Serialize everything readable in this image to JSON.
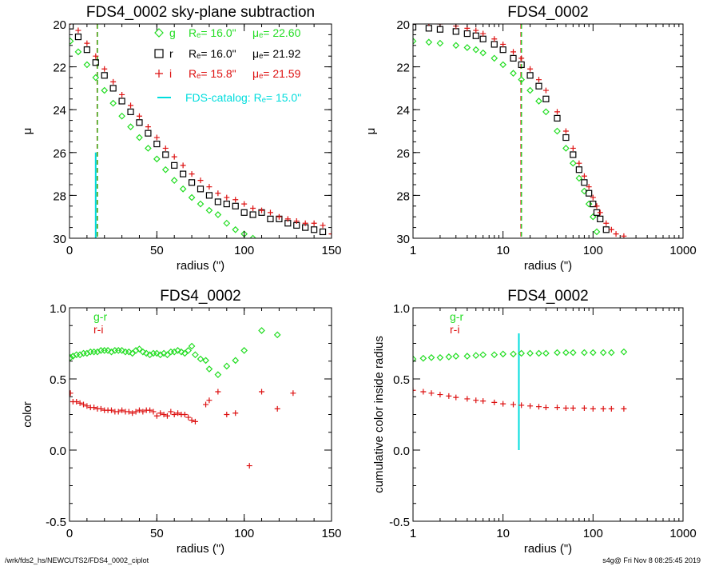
{
  "footer": {
    "path": "/wrk/fds2_hs/NEWCUTS2/FDS4_0002_ciplot",
    "stamp": "s4g@  Fri Nov  8 08:25:45 2019"
  },
  "colors": {
    "g": "#22dd22",
    "r": "#000000",
    "i": "#dd1111",
    "catalog": "#00dddd"
  },
  "chart_data": [
    {
      "id": "p1",
      "type": "scatter",
      "title": "FDS4_0002 sky-plane subtraction",
      "xlabel": "radius (\")",
      "ylabel": "μ",
      "xlim": [
        0,
        150
      ],
      "ylim": [
        30,
        20
      ],
      "xticks": [
        0,
        50,
        100,
        150
      ],
      "yticks": [
        20,
        22,
        24,
        26,
        28,
        30
      ],
      "vlines": [
        {
          "x": 16.0,
          "color": "#000000",
          "dashed": true
        },
        {
          "x": 15.8,
          "color": "#dd1111",
          "dashed": true
        },
        {
          "x": 16.0,
          "color": "#22dd22",
          "dashed": true
        },
        {
          "x": 15.0,
          "color": "#00dddd",
          "dashed": false,
          "y": [
            26.0,
            30.0
          ]
        }
      ],
      "legend": [
        {
          "symbol": "g",
          "label": "g",
          "re": "Rₑ=  16.0\"",
          "mu": "μₑ= 22.60",
          "color": "#22dd22"
        },
        {
          "symbol": "r",
          "label": "r",
          "re": "Rₑ=  16.0\"",
          "mu": "μₑ= 21.92",
          "color": "#000000"
        },
        {
          "symbol": "i",
          "label": "i",
          "re": "Rₑ=  15.8\"",
          "mu": "μₑ= 21.59",
          "color": "#dd1111"
        }
      ],
      "catalog_label": "FDS-catalog: Rₑ=  15.0\"",
      "series": [
        {
          "name": "g",
          "color": "#22dd22",
          "marker": "diamond",
          "x": [
            0.5,
            5,
            10,
            15,
            20,
            25,
            30,
            35,
            40,
            45,
            50,
            55,
            60,
            65,
            70,
            75,
            80,
            85,
            90,
            95,
            100,
            105
          ],
          "y": [
            20.8,
            21.3,
            21.9,
            22.5,
            23.1,
            23.7,
            24.3,
            24.8,
            25.3,
            25.8,
            26.3,
            26.8,
            27.3,
            27.7,
            28.1,
            28.4,
            28.7,
            28.9,
            29.3,
            29.6,
            29.8,
            30.0
          ]
        },
        {
          "name": "r",
          "color": "#000000",
          "marker": "square",
          "x": [
            0.5,
            5,
            10,
            15,
            20,
            25,
            30,
            35,
            40,
            45,
            50,
            55,
            60,
            65,
            70,
            75,
            80,
            85,
            90,
            95,
            100,
            105,
            110,
            115,
            120,
            125,
            130,
            135,
            140,
            145
          ],
          "y": [
            20.1,
            20.6,
            21.2,
            21.8,
            22.4,
            23.0,
            23.6,
            24.1,
            24.6,
            25.1,
            25.6,
            26.1,
            26.6,
            27.0,
            27.4,
            27.7,
            28.0,
            28.3,
            28.4,
            28.5,
            28.8,
            28.9,
            28.8,
            29.1,
            29.1,
            29.3,
            29.4,
            29.5,
            29.6,
            29.7
          ]
        },
        {
          "name": "i",
          "color": "#dd1111",
          "marker": "plus",
          "x": [
            0.5,
            5,
            10,
            15,
            20,
            25,
            30,
            35,
            40,
            45,
            50,
            55,
            60,
            65,
            70,
            75,
            80,
            85,
            90,
            95,
            100,
            105,
            110,
            115,
            120,
            125,
            130,
            135,
            140,
            145,
            150
          ],
          "y": [
            19.9,
            20.3,
            20.9,
            21.5,
            22.1,
            22.7,
            23.3,
            23.8,
            24.3,
            24.8,
            25.3,
            25.8,
            26.2,
            26.6,
            27.0,
            27.3,
            27.6,
            27.9,
            28.1,
            28.2,
            28.4,
            28.6,
            28.7,
            28.8,
            29.0,
            29.1,
            29.2,
            29.3,
            29.3,
            29.4,
            29.8
          ]
        }
      ]
    },
    {
      "id": "p2",
      "type": "scatter",
      "title": "FDS4_0002",
      "xlabel": "radius (\")",
      "ylabel": "μ",
      "xscale": "log",
      "xlim": [
        1,
        1000
      ],
      "ylim": [
        30,
        20
      ],
      "xticks": [
        1,
        10,
        100,
        1000
      ],
      "yticks": [
        20,
        22,
        24,
        26,
        28,
        30
      ],
      "vlines": [
        {
          "x": 16.0,
          "color": "#000000",
          "dashed": true
        },
        {
          "x": 15.8,
          "color": "#dd1111",
          "dashed": true
        },
        {
          "x": 16.0,
          "color": "#22dd22",
          "dashed": true
        }
      ],
      "series": [
        {
          "name": "g",
          "color": "#22dd22",
          "marker": "diamond",
          "x": [
            1,
            1.5,
            2,
            3,
            4,
            5,
            6,
            8,
            10,
            13,
            16,
            20,
            25,
            30,
            40,
            50,
            60,
            70,
            80,
            90,
            100,
            110
          ],
          "y": [
            20.8,
            20.85,
            20.9,
            21.0,
            21.1,
            21.2,
            21.35,
            21.6,
            21.9,
            22.3,
            22.6,
            23.1,
            23.6,
            24.1,
            25.0,
            25.8,
            26.5,
            27.2,
            27.8,
            28.4,
            29.0,
            29.7
          ]
        },
        {
          "name": "r",
          "color": "#000000",
          "marker": "square",
          "x": [
            1,
            1.5,
            2,
            3,
            4,
            5,
            6,
            8,
            10,
            13,
            16,
            20,
            25,
            30,
            40,
            50,
            60,
            70,
            80,
            90,
            100,
            110,
            120,
            140
          ],
          "y": [
            20.15,
            20.2,
            20.25,
            20.35,
            20.45,
            20.55,
            20.7,
            20.95,
            21.2,
            21.6,
            21.9,
            22.4,
            22.9,
            23.5,
            24.4,
            25.3,
            26.1,
            26.8,
            27.4,
            27.9,
            28.4,
            28.8,
            29.1,
            29.6
          ]
        },
        {
          "name": "i",
          "color": "#dd1111",
          "marker": "plus",
          "x": [
            1,
            1.5,
            2,
            3,
            4,
            5,
            6,
            8,
            10,
            13,
            16,
            20,
            25,
            30,
            40,
            50,
            60,
            70,
            80,
            90,
            100,
            110,
            120,
            140,
            160,
            180,
            220
          ],
          "y": [
            19.9,
            19.95,
            20.0,
            20.1,
            20.2,
            20.3,
            20.45,
            20.7,
            20.95,
            21.3,
            21.6,
            22.1,
            22.6,
            23.1,
            24.1,
            25.0,
            25.8,
            26.5,
            27.1,
            27.6,
            28.1,
            28.5,
            28.8,
            29.3,
            29.6,
            29.8,
            29.9
          ]
        }
      ]
    },
    {
      "id": "p3",
      "type": "scatter",
      "title": "FDS4_0002",
      "xlabel": "radius (\")",
      "ylabel": "color",
      "xlim": [
        0,
        150
      ],
      "ylim": [
        -0.5,
        1.0
      ],
      "xticks": [
        0,
        50,
        100,
        150
      ],
      "yticks": [
        -0.5,
        0.0,
        0.5,
        1.0
      ],
      "ytick_labels": [
        "-0.5",
        "0.0",
        "0.5",
        "1.0"
      ],
      "legend": [
        {
          "label": "g-r",
          "color": "#22dd22"
        },
        {
          "label": "r-i",
          "color": "#dd1111"
        }
      ],
      "series": [
        {
          "name": "g-r",
          "color": "#22dd22",
          "marker": "diamond",
          "x": [
            0.5,
            2,
            4,
            6,
            8,
            10,
            12,
            14,
            16,
            18,
            20,
            22,
            24,
            26,
            28,
            30,
            32,
            34,
            36,
            38,
            40,
            42,
            44,
            46,
            48,
            50,
            52,
            54,
            56,
            58,
            60,
            62,
            64,
            66,
            68,
            70,
            72,
            75,
            78,
            80,
            85,
            90,
            95,
            100,
            110,
            119
          ],
          "y": [
            0.65,
            0.66,
            0.67,
            0.67,
            0.68,
            0.68,
            0.69,
            0.69,
            0.69,
            0.7,
            0.7,
            0.7,
            0.69,
            0.7,
            0.7,
            0.7,
            0.69,
            0.69,
            0.68,
            0.7,
            0.71,
            0.69,
            0.68,
            0.67,
            0.68,
            0.68,
            0.67,
            0.68,
            0.67,
            0.69,
            0.69,
            0.7,
            0.69,
            0.68,
            0.7,
            0.73,
            0.67,
            0.64,
            0.63,
            0.57,
            0.53,
            0.59,
            0.63,
            0.7,
            0.84,
            0.81
          ]
        },
        {
          "name": "r-i",
          "color": "#dd1111",
          "marker": "plus",
          "x": [
            0.5,
            2,
            4,
            6,
            8,
            10,
            12,
            14,
            16,
            18,
            20,
            22,
            24,
            26,
            28,
            30,
            32,
            34,
            36,
            38,
            40,
            42,
            44,
            46,
            48,
            50,
            52,
            54,
            56,
            58,
            60,
            62,
            64,
            66,
            68,
            70,
            72,
            78,
            80,
            85,
            90,
            95,
            103,
            110,
            119,
            128
          ],
          "y": [
            0.4,
            0.34,
            0.34,
            0.33,
            0.32,
            0.31,
            0.3,
            0.3,
            0.29,
            0.29,
            0.28,
            0.28,
            0.28,
            0.27,
            0.27,
            0.28,
            0.27,
            0.27,
            0.26,
            0.27,
            0.28,
            0.27,
            0.28,
            0.28,
            0.27,
            0.24,
            0.26,
            0.25,
            0.24,
            0.27,
            0.25,
            0.26,
            0.25,
            0.25,
            0.23,
            0.21,
            0.2,
            0.32,
            0.35,
            0.41,
            0.25,
            0.26,
            -0.11,
            0.41,
            0.29,
            0.4
          ]
        }
      ]
    },
    {
      "id": "p4",
      "type": "scatter",
      "title": "FDS4_0002",
      "xlabel": "radius (\")",
      "ylabel": "cumulative color inside radius",
      "xscale": "log",
      "xlim": [
        1,
        1000
      ],
      "ylim": [
        -0.5,
        1.0
      ],
      "xticks": [
        1,
        10,
        100,
        1000
      ],
      "yticks": [
        -0.5,
        0.0,
        0.5,
        1.0
      ],
      "ytick_labels": [
        "-0.5",
        "0.0",
        "0.5",
        "1.0"
      ],
      "vlines": [
        {
          "x": 15.0,
          "color": "#00dddd",
          "dashed": false,
          "y": [
            0.0,
            0.82
          ]
        }
      ],
      "legend": [
        {
          "label": "g-r",
          "color": "#22dd22"
        },
        {
          "label": "r-i",
          "color": "#dd1111"
        }
      ],
      "series": [
        {
          "name": "g-r",
          "color": "#22dd22",
          "marker": "diamond",
          "x": [
            1,
            1.3,
            1.6,
            2,
            2.5,
            3,
            4,
            5,
            6,
            8,
            10,
            13,
            16,
            20,
            25,
            30,
            40,
            50,
            60,
            80,
            100,
            130,
            160,
            220
          ],
          "y": [
            0.64,
            0.645,
            0.65,
            0.65,
            0.655,
            0.66,
            0.66,
            0.665,
            0.67,
            0.67,
            0.675,
            0.675,
            0.68,
            0.68,
            0.68,
            0.68,
            0.685,
            0.685,
            0.685,
            0.685,
            0.685,
            0.685,
            0.685,
            0.69
          ]
        },
        {
          "name": "r-i",
          "color": "#dd1111",
          "marker": "plus",
          "x": [
            1,
            1.3,
            1.6,
            2,
            2.5,
            3,
            4,
            5,
            6,
            8,
            10,
            13,
            16,
            20,
            25,
            30,
            40,
            50,
            60,
            80,
            100,
            130,
            160,
            220
          ],
          "y": [
            0.42,
            0.41,
            0.4,
            0.39,
            0.38,
            0.37,
            0.36,
            0.35,
            0.345,
            0.335,
            0.325,
            0.32,
            0.315,
            0.31,
            0.305,
            0.3,
            0.3,
            0.295,
            0.295,
            0.295,
            0.29,
            0.29,
            0.29,
            0.29
          ]
        }
      ]
    }
  ]
}
